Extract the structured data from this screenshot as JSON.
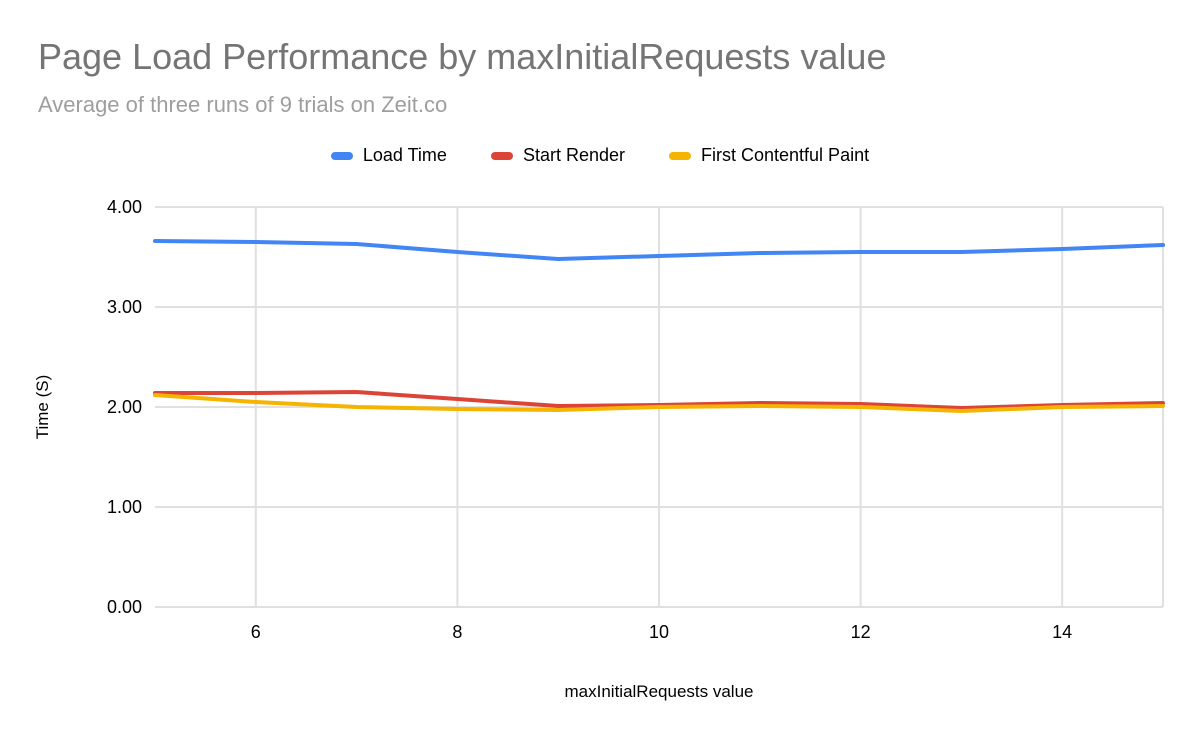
{
  "title": "Page Load Performance by maxInitialRequests value",
  "subtitle": "Average of three runs of 9 trials on Zeit.co",
  "colors": {
    "title": "#757575",
    "subtitle": "#9e9e9e",
    "grid": "#e0e0e0",
    "tick_label": "#000000",
    "axis_title": "#000000",
    "load_time": "#4285f4",
    "start_render": "#db4437",
    "first_contentful_paint": "#f4b400"
  },
  "chart_data": {
    "type": "line",
    "title": "Page Load Performance by maxInitialRequests value",
    "subtitle": "Average of three runs of 9 trials on Zeit.co",
    "xlabel": "maxInitialRequests value",
    "ylabel": "Time (S)",
    "xlim": [
      5,
      15
    ],
    "ylim": [
      0,
      4
    ],
    "x_ticks": [
      6,
      8,
      10,
      12,
      14
    ],
    "y_ticks": [
      0,
      1,
      2,
      3,
      4
    ],
    "grid": true,
    "legend_position": "top",
    "x": [
      5,
      6,
      7,
      8,
      9,
      10,
      11,
      12,
      13,
      14,
      15
    ],
    "series": [
      {
        "name": "Load Time",
        "color": "#4285f4",
        "values": [
          3.66,
          3.65,
          3.63,
          3.55,
          3.48,
          3.51,
          3.54,
          3.55,
          3.55,
          3.58,
          3.62
        ]
      },
      {
        "name": "Start Render",
        "color": "#db4437",
        "values": [
          2.14,
          2.14,
          2.15,
          2.08,
          2.01,
          2.02,
          2.04,
          2.03,
          1.99,
          2.02,
          2.04
        ]
      },
      {
        "name": "First Contentful Paint",
        "color": "#f4b400",
        "values": [
          2.12,
          2.05,
          2.0,
          1.98,
          1.97,
          2.0,
          2.01,
          2.0,
          1.96,
          2.0,
          2.01
        ]
      }
    ]
  }
}
